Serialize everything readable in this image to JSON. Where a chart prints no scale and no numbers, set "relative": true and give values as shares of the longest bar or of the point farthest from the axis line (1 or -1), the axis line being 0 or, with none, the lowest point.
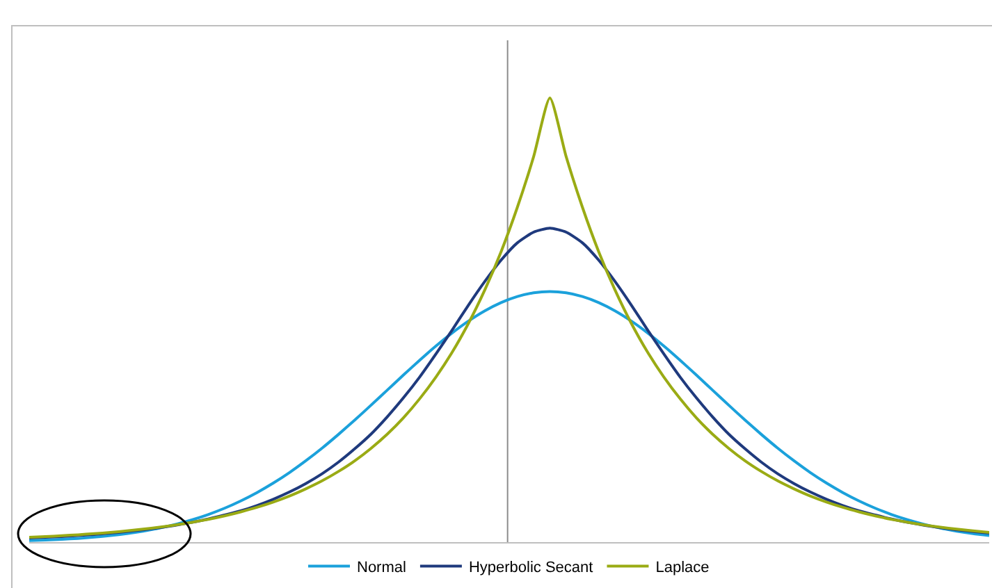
{
  "chart_data": {
    "type": "line",
    "relative": true,
    "legend": "bottom",
    "grid": false,
    "marker": "none",
    "line_style": "solid",
    "tick_labels": false,
    "categories": [
      null,
      null,
      null,
      null,
      null,
      null,
      null,
      null,
      null,
      null,
      null,
      null,
      null,
      null,
      null,
      null,
      null,
      null,
      null,
      null,
      null,
      null,
      null,
      null,
      null,
      null,
      null,
      null,
      null,
      null,
      null,
      null,
      null,
      null,
      null,
      null,
      null,
      null,
      null,
      null,
      null,
      null,
      null,
      null,
      null,
      null,
      null,
      null,
      null,
      null,
      null,
      null,
      null,
      null,
      null,
      null,
      null,
      null,
      null,
      null
    ],
    "series": [
      {
        "name": "Normal",
        "color": "#1ba1db",
        "values": [
          0.0034,
          0.0046,
          0.0063,
          0.0084,
          0.0112,
          0.0147,
          0.0192,
          0.0248,
          0.0317,
          0.0401,
          0.0502,
          0.0622,
          0.0763,
          0.0928,
          0.1117,
          0.133,
          0.1568,
          0.1832,
          0.2117,
          0.2424,
          0.2746,
          0.3081,
          0.3422,
          0.3763,
          0.4097,
          0.4416,
          0.4713,
          0.4979,
          0.5208,
          0.5394,
          0.553,
          0.5614,
          0.5642,
          0.5614,
          0.553,
          0.5394,
          0.5208,
          0.4979,
          0.4713,
          0.4416,
          0.4097,
          0.3763,
          0.3422,
          0.3081,
          0.2746,
          0.2424,
          0.2117,
          0.1832,
          0.1568,
          0.133,
          0.1117,
          0.0928,
          0.0763,
          0.0622,
          0.0502,
          0.0401,
          0.0317,
          0.0248,
          0.0192,
          0.0147
        ]
      },
      {
        "name": "Hyperbolic Secant",
        "color": "#1f3a7d",
        "values": [
          0.0093,
          0.0109,
          0.0127,
          0.0149,
          0.0174,
          0.0204,
          0.0238,
          0.0279,
          0.0326,
          0.0381,
          0.0446,
          0.0521,
          0.061,
          0.0705,
          0.0825,
          0.0966,
          0.113,
          0.132,
          0.154,
          0.18,
          0.21,
          0.243,
          0.282,
          0.325,
          0.372,
          0.424,
          0.478,
          0.534,
          0.587,
          0.635,
          0.674,
          0.698,
          0.707,
          0.698,
          0.674,
          0.635,
          0.587,
          0.534,
          0.478,
          0.424,
          0.372,
          0.325,
          0.282,
          0.243,
          0.21,
          0.18,
          0.154,
          0.132,
          0.113,
          0.0966,
          0.0825,
          0.0705,
          0.061,
          0.0521,
          0.0446,
          0.0381,
          0.0326,
          0.0279,
          0.0238,
          0.0204
        ]
      },
      {
        "name": "Laplace",
        "color": "#9aab14",
        "values": [
          0.0108,
          0.0125,
          0.0144,
          0.0166,
          0.0191,
          0.022,
          0.0253,
          0.0292,
          0.0336,
          0.0387,
          0.0446,
          0.0513,
          0.0591,
          0.0681,
          0.0784,
          0.0903,
          0.104,
          0.12,
          0.138,
          0.159,
          0.183,
          0.211,
          0.243,
          0.28,
          0.323,
          0.372,
          0.428,
          0.493,
          0.568,
          0.654,
          0.754,
          0.868,
          1,
          0.868,
          0.754,
          0.654,
          0.568,
          0.493,
          0.428,
          0.372,
          0.323,
          0.28,
          0.243,
          0.211,
          0.183,
          0.159,
          0.138,
          0.12,
          0.104,
          0.0903,
          0.0784,
          0.0681,
          0.0591,
          0.0513,
          0.0446,
          0.0387,
          0.0336,
          0.0292,
          0.0253,
          0.022
        ]
      }
    ]
  }
}
